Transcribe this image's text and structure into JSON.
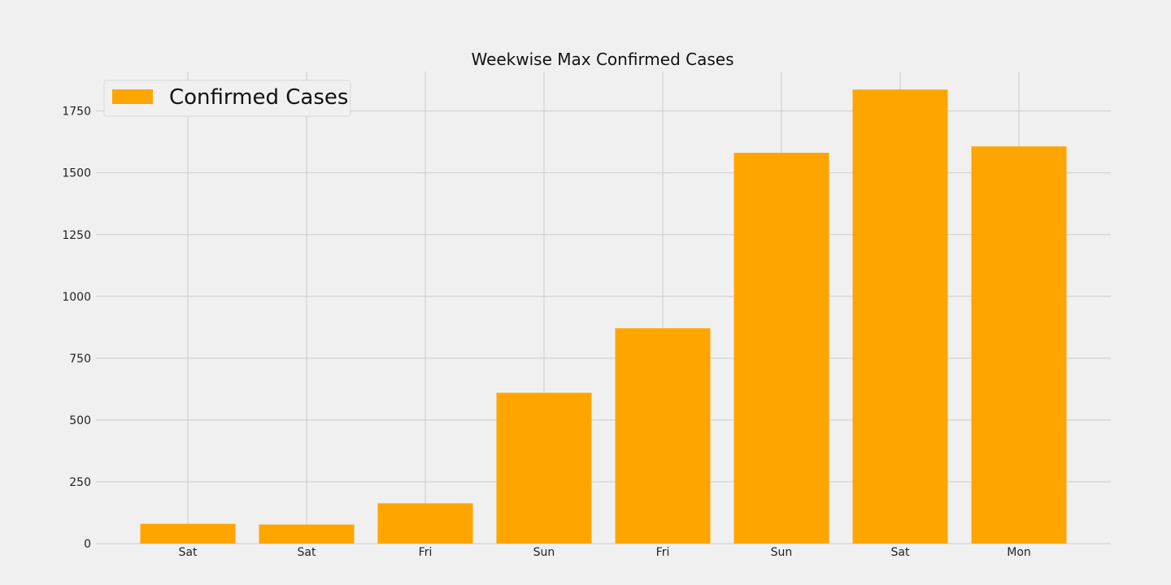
{
  "chart_data": {
    "type": "bar",
    "title": "Weekwise Max Confirmed Cases",
    "categories": [
      "Sat",
      "Sat",
      "Fri",
      "Sun",
      "Fri",
      "Sun",
      "Sat",
      "Mon"
    ],
    "series": [
      {
        "name": "Confirmed Cases",
        "values": [
          80,
          77,
          163,
          610,
          871,
          1581,
          1837,
          1607
        ],
        "color": "#ffa500"
      }
    ],
    "xlabel": "",
    "ylabel": "",
    "ylim": [
      0,
      1910
    ],
    "yticks": [
      0,
      250,
      500,
      750,
      1000,
      1250,
      1500,
      1750
    ],
    "grid": true,
    "legend_position": "top-left",
    "background": "#f0f0f0",
    "grid_color": "#cbcbcb"
  }
}
